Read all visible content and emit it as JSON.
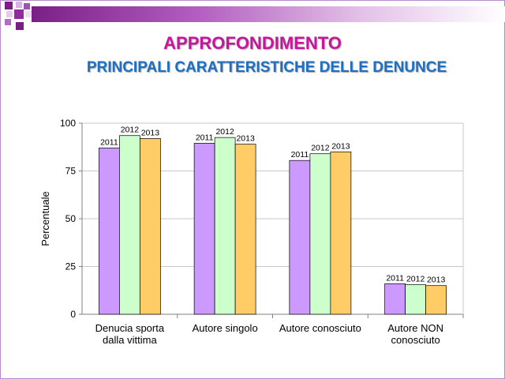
{
  "slide": {
    "title": "APPROFONDIMENTO",
    "subtitle": "PRINCIPALI CARATTERISTICHE DELLE DENUNCE"
  },
  "colors": {
    "series_2011": "#cc99ff",
    "series_2012": "#ccffcc",
    "series_2013": "#ffcc66",
    "title": "#c7169c",
    "subtitle": "#1e6fc2"
  },
  "chart_data": {
    "type": "bar",
    "title": "",
    "xlabel": "",
    "ylabel": "Percentuale",
    "ylim": [
      0,
      100
    ],
    "yticks": [
      0,
      25,
      50,
      75,
      100
    ],
    "grid": true,
    "categories": [
      [
        "Denucia sporta",
        "dalla vittima"
      ],
      [
        "Autore singolo"
      ],
      [
        "Autore conosciuto"
      ],
      [
        "Autore NON",
        "conosciuto"
      ]
    ],
    "series": [
      {
        "name": "2011",
        "values": [
          87,
          89.5,
          80.5,
          16
        ]
      },
      {
        "name": "2012",
        "values": [
          93.5,
          92.5,
          84,
          15.5
        ]
      },
      {
        "name": "2013",
        "values": [
          92,
          89,
          85,
          15
        ]
      }
    ]
  }
}
